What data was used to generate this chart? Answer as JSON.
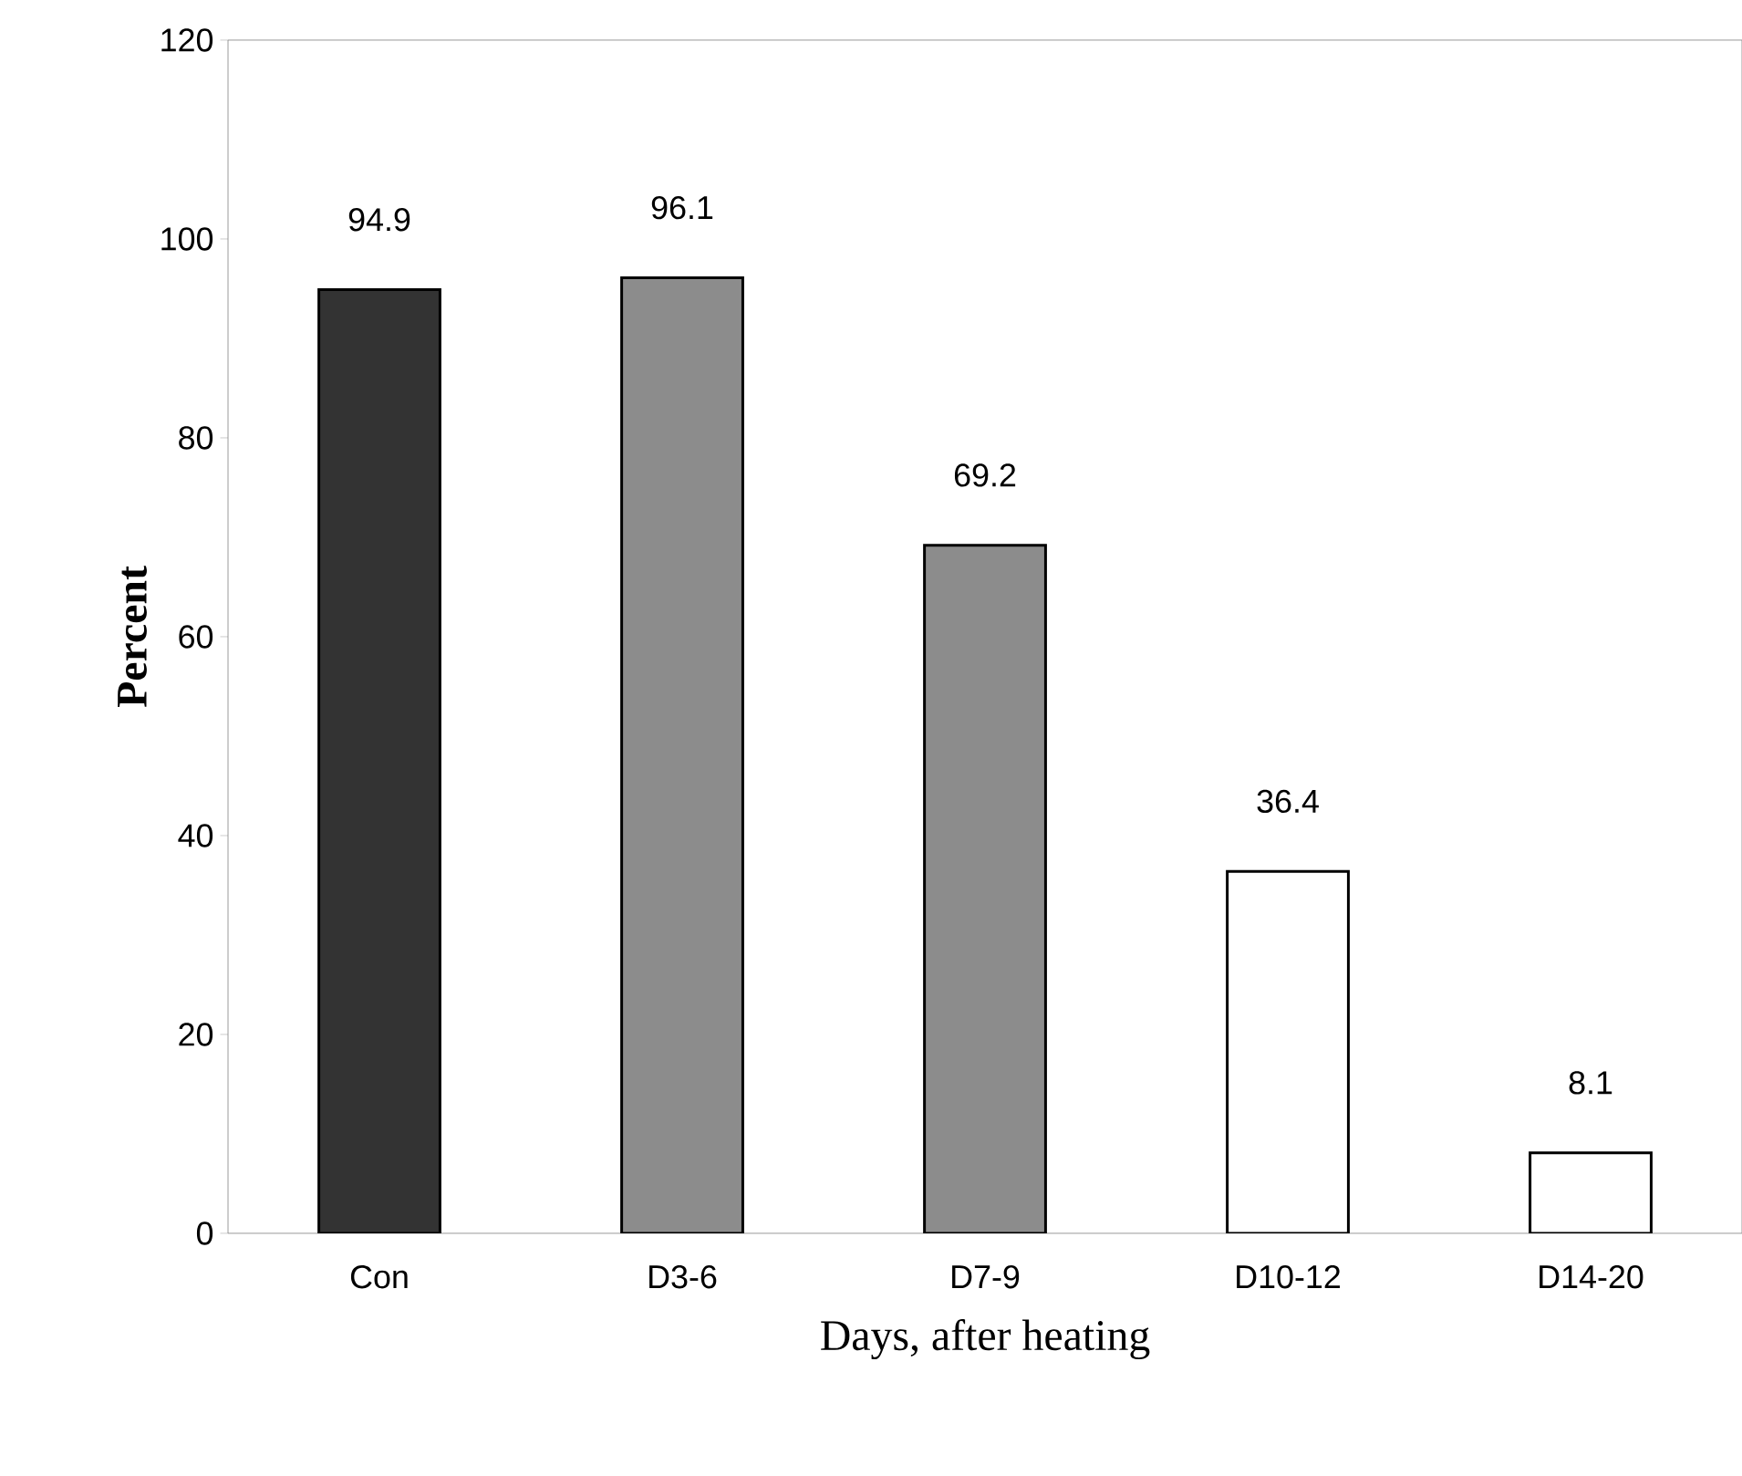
{
  "chart_data": {
    "type": "bar",
    "xlabel": "Days, after heating",
    "ylabel": "Percent",
    "categories": [
      "Con",
      "D3-6",
      "D7-9",
      "D10-12",
      "D14-20"
    ],
    "values": [
      94.9,
      96.1,
      69.2,
      36.4,
      8.1
    ],
    "colors": [
      "#333333",
      "#8c8c8c",
      "#8c8c8c",
      "#ffffff",
      "#ffffff"
    ],
    "ylim": [
      0,
      120
    ],
    "yticks": [
      0,
      20,
      40,
      60,
      80,
      100,
      120
    ],
    "data_labels": true,
    "grid": false
  }
}
